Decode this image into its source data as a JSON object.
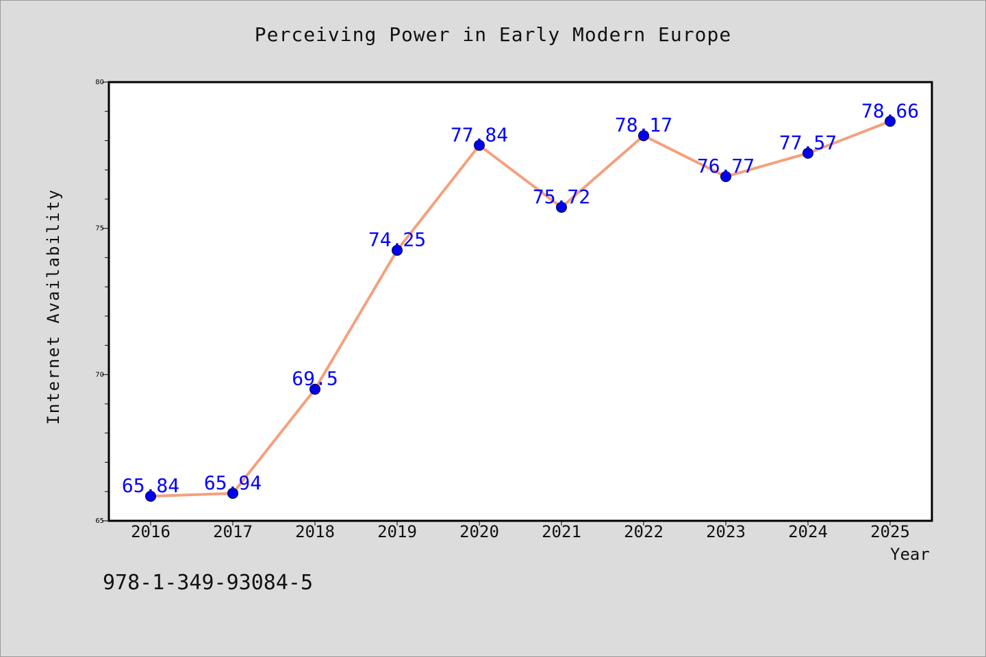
{
  "chart_data": {
    "type": "line",
    "title": "Perceiving Power in Early Modern Europe",
    "xlabel": "Year",
    "ylabel": "Internet Availability",
    "categories": [
      "2016",
      "2017",
      "2018",
      "2019",
      "2020",
      "2021",
      "2022",
      "2023",
      "2024",
      "2025"
    ],
    "values": [
      65.84,
      65.94,
      69.5,
      74.25,
      77.84,
      75.72,
      78.17,
      76.77,
      77.57,
      78.66
    ],
    "data_labels": [
      "65.84",
      "65.94",
      "69.5",
      "74.25",
      "77.84",
      "75.72",
      "78.17",
      "76.77",
      "77.57",
      "78.66"
    ],
    "ylim": [
      65,
      80
    ],
    "yticks": [
      65,
      70,
      75,
      80
    ],
    "grid": false,
    "line_color": "#f4a07c",
    "marker_color": "#0000ee",
    "label_color": "#0000ff"
  },
  "footer": {
    "isbn": "978-1-349-93084-5"
  }
}
